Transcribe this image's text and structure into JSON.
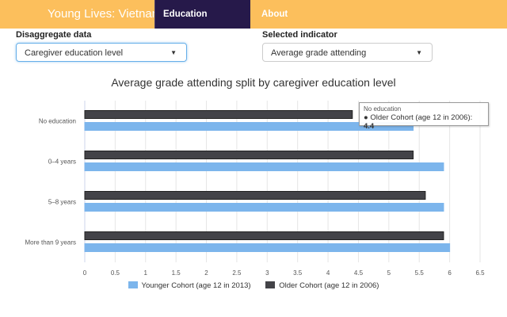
{
  "nav": {
    "brand": "Young Lives: Vietnam",
    "tabs": [
      "Education Comparison",
      "About"
    ],
    "active_tab": "Education Comparison",
    "bg": "#fcbf5c",
    "active_bg": "#26194a"
  },
  "controls": {
    "disaggregate": {
      "label": "Disaggregate data",
      "value": "Caregiver education level"
    },
    "indicator": {
      "label": "Selected indicator",
      "value": "Average grade attending"
    }
  },
  "tooltip": {
    "header": "No education",
    "series": "Older Cohort (age 12 in 2006)",
    "value": "4.4"
  },
  "chart_data": {
    "type": "bar",
    "orientation": "horizontal",
    "title": "Average grade attending split by caregiver education level",
    "categories": [
      "No education",
      "0–4 years",
      "5–8 years",
      "More than 9 years"
    ],
    "series": [
      {
        "name": "Older Cohort (age 12 in 2006)",
        "color": "#434348",
        "values": [
          4.4,
          5.4,
          5.6,
          5.9
        ]
      },
      {
        "name": "Younger Cohort (age 12 in 2013)",
        "color": "#7cb5ec",
        "values": [
          5.4,
          5.9,
          5.9,
          6.0
        ]
      }
    ],
    "legend_order": [
      "Younger Cohort (age 12 in 2013)",
      "Older Cohort (age 12 in 2006)"
    ],
    "xlim": [
      0,
      6.5
    ],
    "xticks": [
      "0",
      "0.5",
      "1",
      "1.5",
      "2",
      "2.5",
      "3",
      "3.5",
      "4",
      "4.5",
      "5",
      "5.5",
      "6",
      "6.5"
    ],
    "grid": true,
    "legend": "bottom"
  }
}
